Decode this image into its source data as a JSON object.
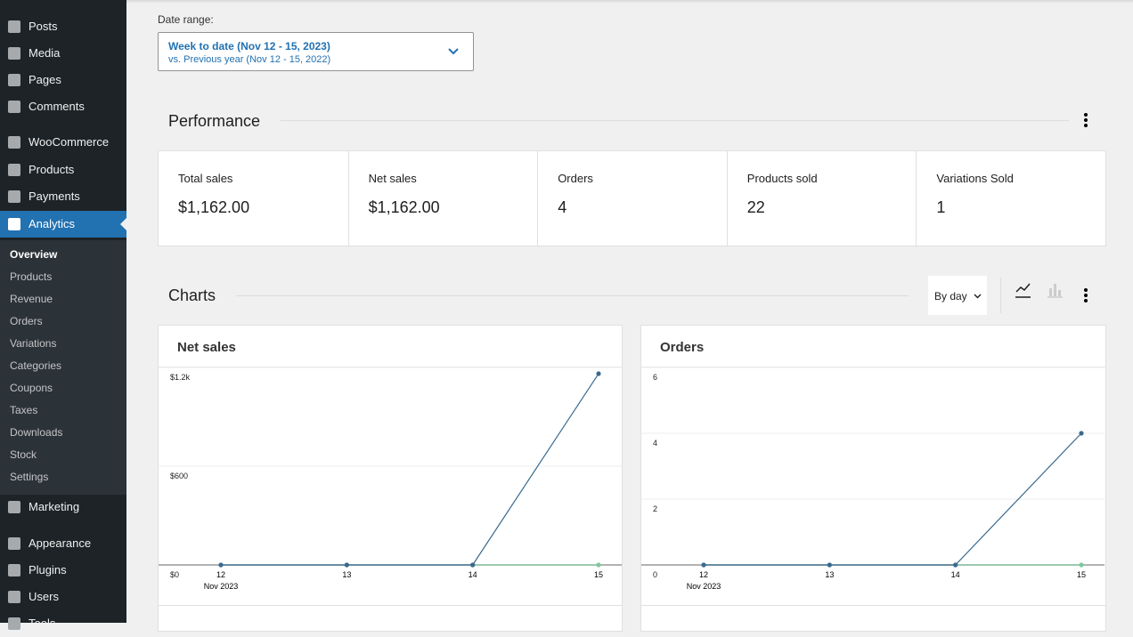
{
  "sidebar": {
    "menu": [
      "Posts",
      "Media",
      "Pages",
      "Comments",
      "WooCommerce",
      "Products",
      "Payments",
      "Analytics",
      "Marketing",
      "Appearance",
      "Plugins",
      "Users",
      "Tools"
    ],
    "active_index": 7,
    "submenu": [
      "Overview",
      "Products",
      "Revenue",
      "Orders",
      "Variations",
      "Categories",
      "Coupons",
      "Taxes",
      "Downloads",
      "Stock",
      "Settings"
    ]
  },
  "date_range": {
    "label": "Date range:",
    "primary": "Week to date (Nov 12 - 15, 2023)",
    "secondary": "vs. Previous year (Nov 12 - 15, 2022)"
  },
  "performance": {
    "title": "Performance",
    "stats": [
      {
        "label": "Total sales",
        "value": "$1,162.00"
      },
      {
        "label": "Net sales",
        "value": "$1,162.00"
      },
      {
        "label": "Orders",
        "value": "4"
      },
      {
        "label": "Products sold",
        "value": "22"
      },
      {
        "label": "Variations Sold",
        "value": "1"
      }
    ]
  },
  "charts_section": {
    "title": "Charts",
    "interval": "By day"
  },
  "chart_data": [
    {
      "type": "line",
      "title": "Net sales",
      "categories": [
        "12",
        "13",
        "14",
        "15"
      ],
      "x_sublabel": "Nov 2023",
      "series": [
        {
          "color": "#80c8a0",
          "values": [
            0,
            0,
            0,
            0
          ]
        },
        {
          "color": "#3a6a8e",
          "values": [
            0,
            0,
            0,
            1162
          ]
        }
      ],
      "ylim": [
        0,
        1200
      ],
      "yticks": [
        {
          "value": 0,
          "label": "$0"
        },
        {
          "value": 600,
          "label": "$600"
        },
        {
          "value": 1200,
          "label": "$1.2k"
        }
      ],
      "grid": true
    },
    {
      "type": "line",
      "title": "Orders",
      "categories": [
        "12",
        "13",
        "14",
        "15"
      ],
      "x_sublabel": "Nov 2023",
      "series": [
        {
          "color": "#80c8a0",
          "values": [
            0,
            0,
            0,
            0
          ]
        },
        {
          "color": "#3a6a8e",
          "values": [
            0,
            0,
            0,
            4
          ]
        }
      ],
      "ylim": [
        0,
        6
      ],
      "yticks": [
        0,
        2,
        4,
        6
      ],
      "grid": true
    }
  ]
}
